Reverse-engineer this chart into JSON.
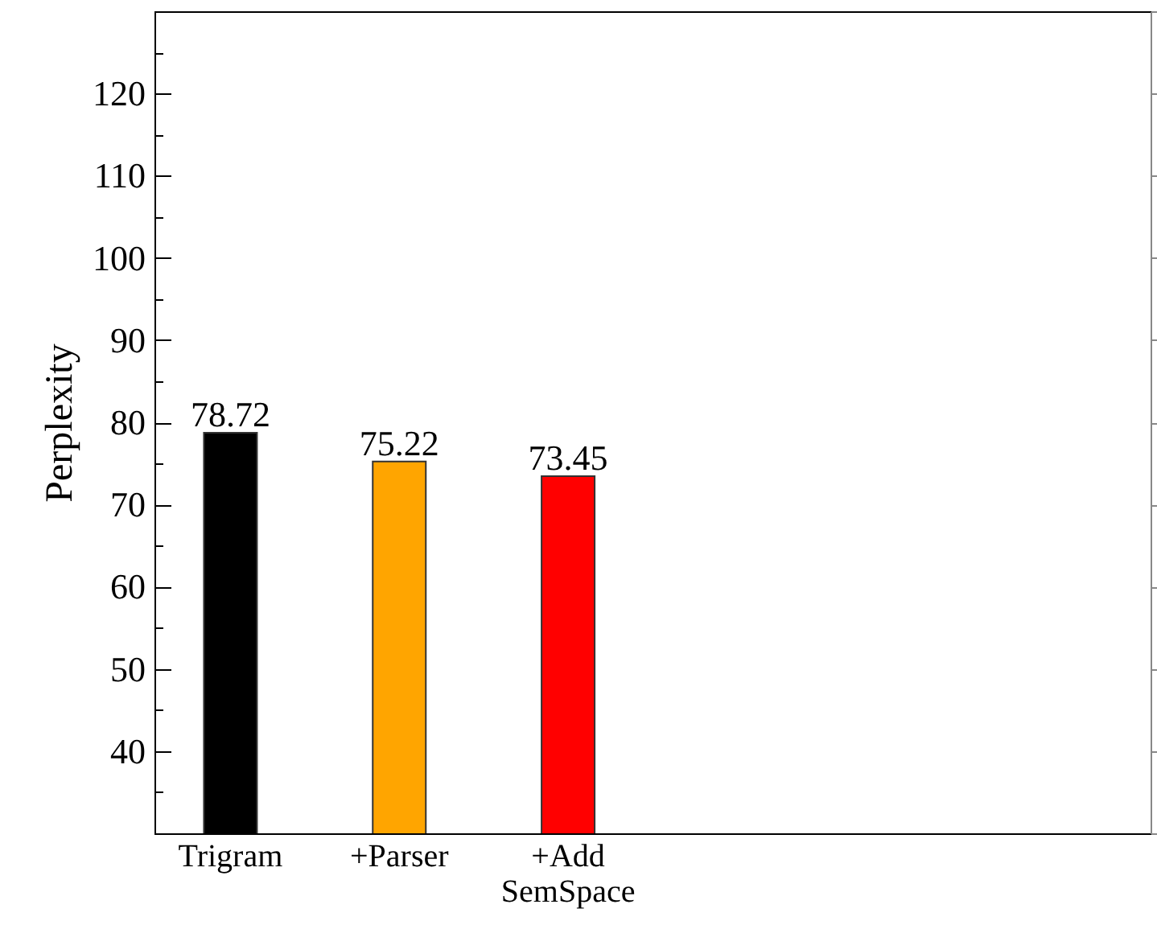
{
  "chart_data": {
    "type": "bar",
    "ylabel": "Perplexity",
    "categories": [
      "Trigram",
      "+Parser",
      "+Add SemSpace",
      null,
      null,
      null
    ],
    "values": [
      78.72,
      75.22,
      73.45,
      null,
      null,
      null
    ],
    "colors": [
      "#000000",
      "#ffa500",
      "#ff0000",
      null,
      null,
      null
    ],
    "ylim": [
      30,
      130
    ],
    "yticks": [
      {
        "value": 35,
        "label": null
      },
      40,
      {
        "value": 45,
        "label": null
      },
      50,
      {
        "value": 55,
        "label": null
      },
      60,
      {
        "value": 65,
        "label": null
      },
      70,
      {
        "value": 75,
        "label": null
      },
      80,
      {
        "value": 85,
        "label": null
      },
      90,
      {
        "value": 95,
        "label": null
      },
      100,
      {
        "value": 105,
        "label": null
      },
      110,
      {
        "value": 115,
        "label": null
      },
      120,
      {
        "value": 125,
        "label": null
      }
    ],
    "data_labels": true,
    "grid": false
  }
}
